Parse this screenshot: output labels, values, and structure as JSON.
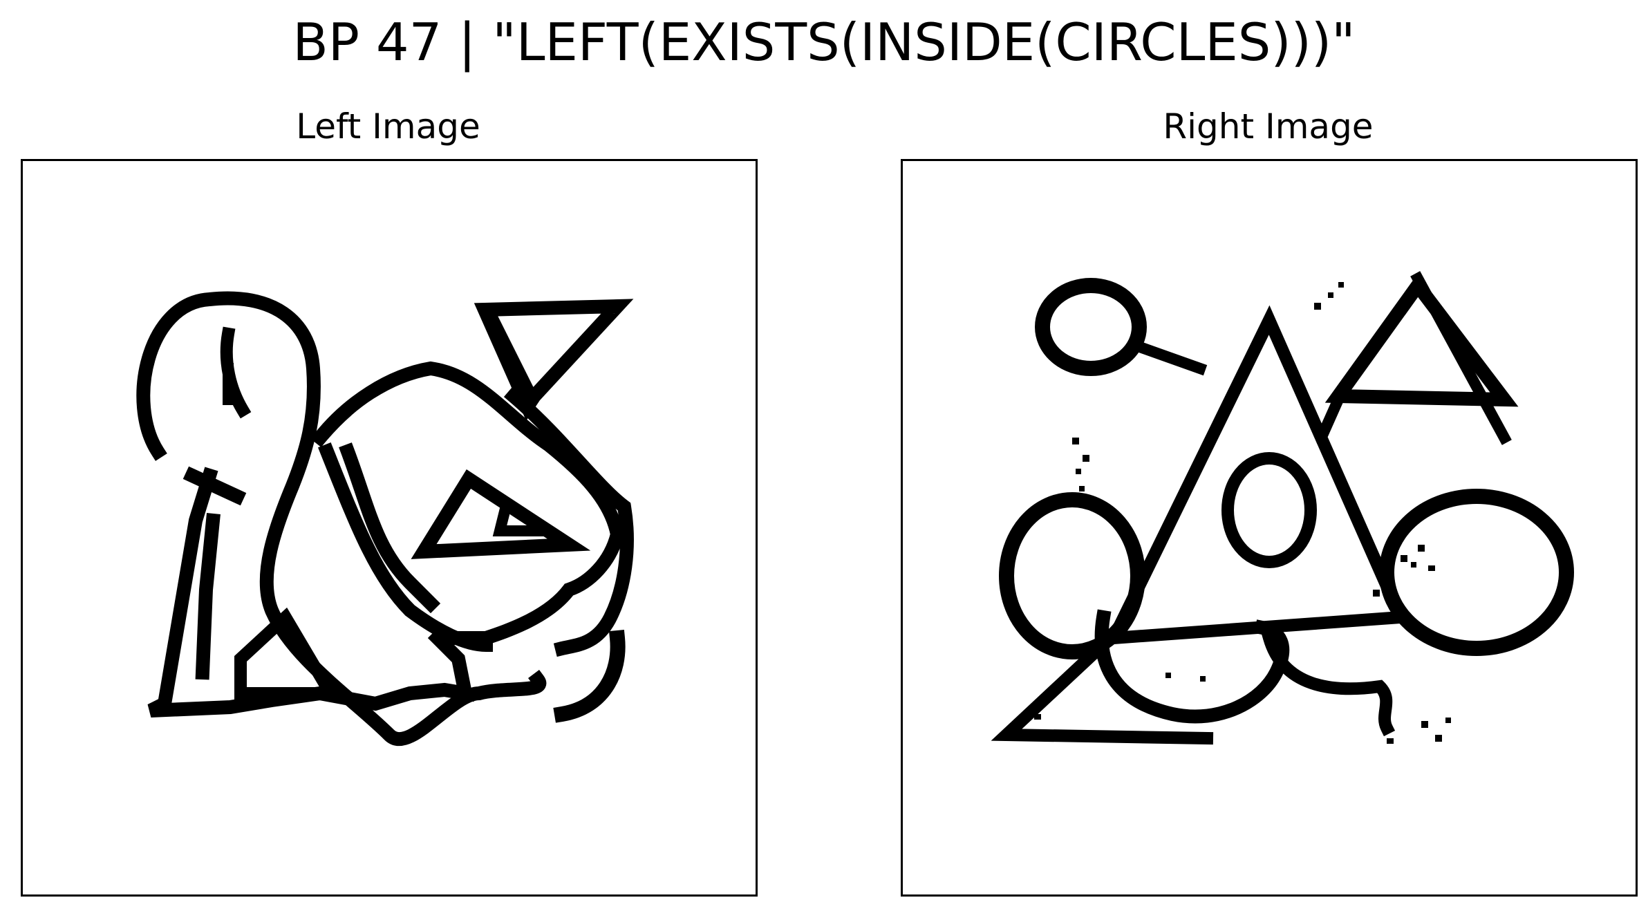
{
  "figure": {
    "title": "BP 47 | \"LEFT(EXISTS(INSIDE(CIRCLES)))\""
  },
  "panels": [
    {
      "title": "Left Image",
      "shapes": [
        "circle-arc",
        "triangle",
        "triangle",
        "triangle",
        "triangle",
        "circle",
        "arc"
      ]
    },
    {
      "title": "Right Image",
      "shapes": [
        "circle",
        "triangle",
        "triangle",
        "circle",
        "circle",
        "circle",
        "circle",
        "triangle"
      ]
    }
  ],
  "colors": {
    "ink": "#000000",
    "background": "#ffffff"
  }
}
